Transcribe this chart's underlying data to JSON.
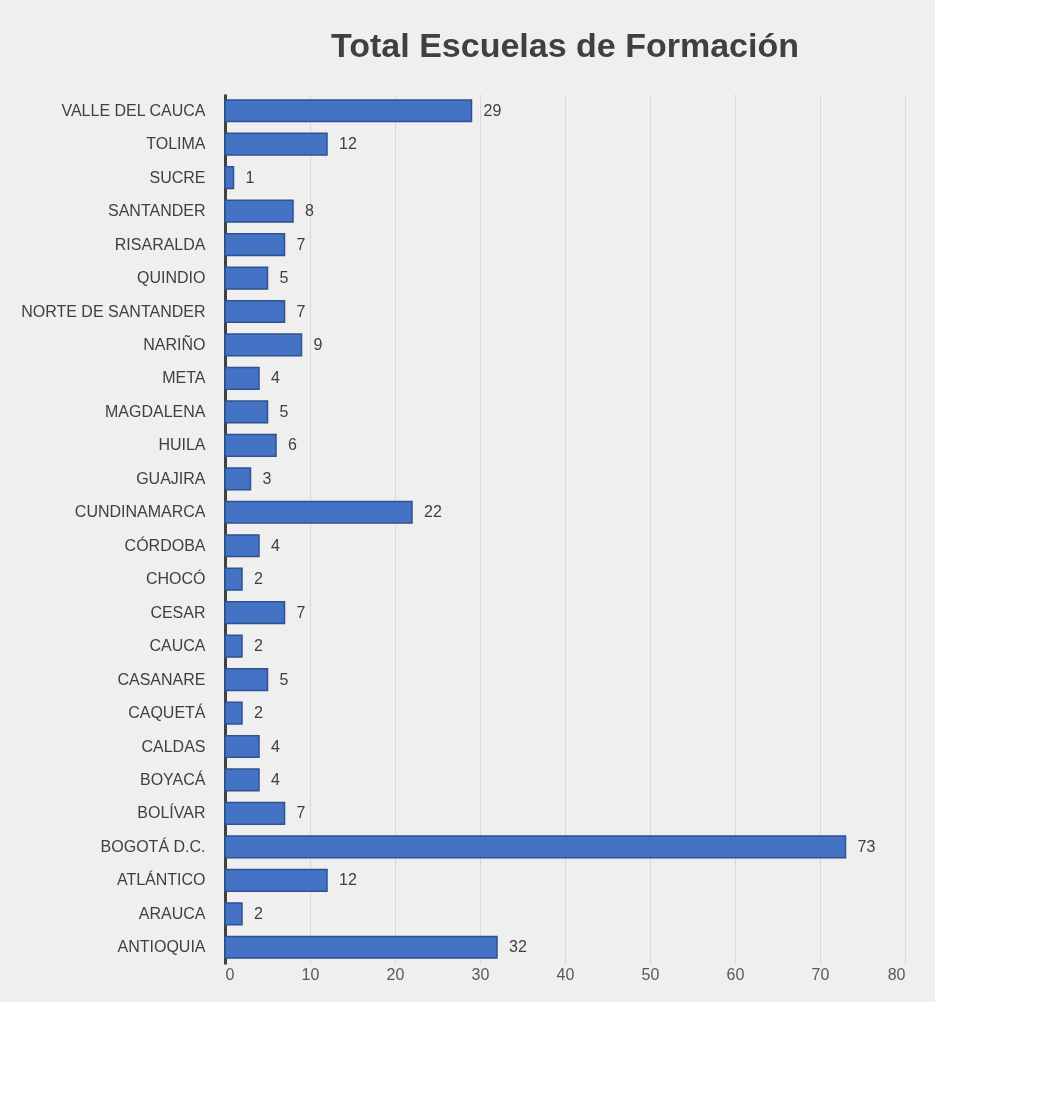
{
  "chart_data": {
    "type": "bar",
    "orientation": "horizontal",
    "title": "Total Escuelas de Formación",
    "categories": [
      "VALLE DEL CAUCA",
      "TOLIMA",
      "SUCRE",
      "SANTANDER",
      "RISARALDA",
      "QUINDIO",
      "NORTE DE SANTANDER",
      "NARIÑO",
      "META",
      "MAGDALENA",
      "HUILA",
      "GUAJIRA",
      "CUNDINAMARCA",
      "CÓRDOBA",
      "CHOCÓ",
      "CESAR",
      "CAUCA",
      "CASANARE",
      "CAQUETÁ",
      "CALDAS",
      "BOYACÁ",
      "BOLÍVAR",
      "BOGOTÁ D.C.",
      "ATLÁNTICO",
      "ARAUCA",
      "ANTIOQUIA"
    ],
    "values": [
      29,
      12,
      1,
      8,
      7,
      5,
      7,
      9,
      4,
      5,
      6,
      3,
      22,
      4,
      2,
      7,
      2,
      5,
      2,
      4,
      4,
      7,
      73,
      12,
      2,
      32
    ],
    "color": "#4472c4",
    "xlim": [
      0,
      80
    ],
    "xticks": [
      0,
      10,
      20,
      30,
      40,
      50,
      60,
      70,
      80
    ],
    "grid": "x",
    "data_labels": true
  }
}
